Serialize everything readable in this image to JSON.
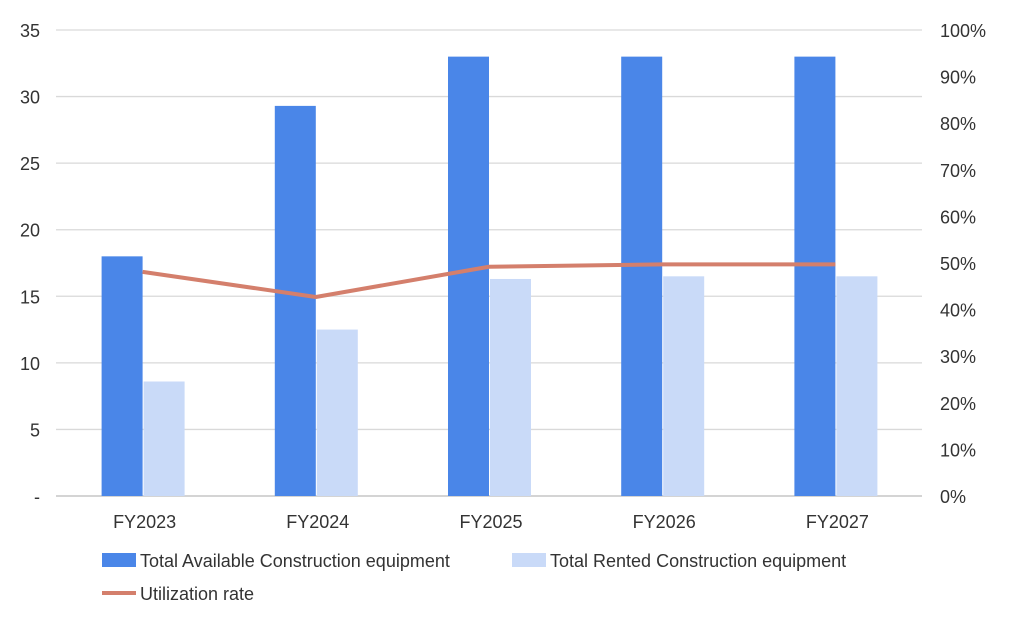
{
  "chart_data": {
    "type": "bar",
    "categories": [
      "FY2023",
      "FY2024",
      "FY2025",
      "FY2026",
      "FY2027"
    ],
    "series": [
      {
        "name": "Total Available Construction equipment",
        "type": "bar",
        "axis": "left",
        "color": "#4a86e8",
        "values": [
          18,
          29.3,
          33,
          33,
          33
        ]
      },
      {
        "name": "Total Rented Construction equipment",
        "type": "bar",
        "axis": "left",
        "color": "#c9daf8",
        "values": [
          8.6,
          12.5,
          16.3,
          16.5,
          16.5
        ]
      },
      {
        "name": "Utilization rate",
        "type": "line",
        "axis": "right",
        "color": "#d47f6c",
        "values": [
          48.1,
          42.7,
          49.2,
          49.7,
          49.7
        ]
      }
    ],
    "left_axis": {
      "ylim": [
        0,
        35
      ],
      "ticks": [
        "-",
        "5",
        "10",
        "15",
        "20",
        "25",
        "30",
        "35"
      ]
    },
    "right_axis": {
      "ylim": [
        0,
        100
      ],
      "ticks": [
        "0%",
        "10%",
        "20%",
        "30%",
        "40%",
        "50%",
        "60%",
        "70%",
        "80%",
        "90%",
        "100%"
      ]
    },
    "grid": true,
    "legend": "bottom"
  }
}
